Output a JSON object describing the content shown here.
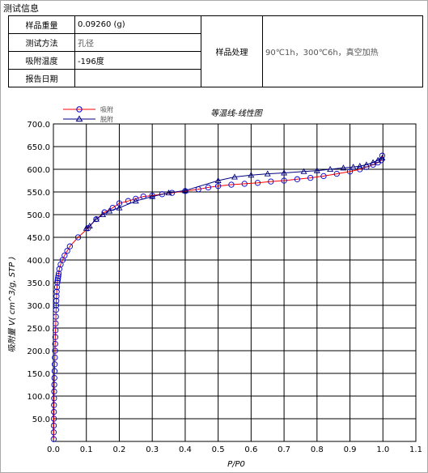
{
  "section_title": "测试信息",
  "info": {
    "sample_weight_label": "样品重量",
    "sample_weight_value": "0.09260 (g)",
    "test_method_label": "测试方法",
    "test_method_value": "孔径",
    "adsorption_temp_label": "吸附温度",
    "adsorption_temp_value": "-196度",
    "report_date_label": "报告日期",
    "report_date_value": "",
    "sample_treatment_label": "样品处理",
    "sample_treatment_value": "90℃1h，300℃6h，真空加热"
  },
  "colors": {
    "adsorption": "#ff0000",
    "desorption": "#000080",
    "marker": "#0000cc",
    "grid": "#000000"
  },
  "chart_data": {
    "type": "line",
    "title": "等温线-线性图",
    "xlabel": "P/P0",
    "ylabel": "吸附量 V( cm^3/g, STP )",
    "xlim": [
      0.0,
      1.1
    ],
    "ylim": [
      0.0,
      700.0
    ],
    "xticks": [
      "0.0",
      "0.1",
      "0.2",
      "0.3",
      "0.4",
      "0.5",
      "0.6",
      "0.7",
      "0.8",
      "0.9",
      "1.0",
      "1.1"
    ],
    "yticks": [
      "50.0",
      "100.0",
      "150.0",
      "200.0",
      "250.0",
      "300.0",
      "350.0",
      "400.0",
      "450.0",
      "500.0",
      "550.0",
      "600.0",
      "650.0",
      "700.0"
    ],
    "grid": true,
    "legend_position": "top-left",
    "series": [
      {
        "name": "吸附",
        "marker": "circle",
        "x": [
          0.0008,
          0.001,
          0.0012,
          0.0014,
          0.0016,
          0.0018,
          0.002,
          0.0023,
          0.0026,
          0.003,
          0.0035,
          0.004,
          0.0045,
          0.005,
          0.0055,
          0.006,
          0.0065,
          0.007,
          0.0075,
          0.008,
          0.0085,
          0.009,
          0.0095,
          0.01,
          0.011,
          0.012,
          0.013,
          0.014,
          0.015,
          0.016,
          0.018,
          0.022,
          0.028,
          0.034,
          0.042,
          0.05,
          0.075,
          0.105,
          0.13,
          0.155,
          0.18,
          0.2,
          0.227,
          0.25,
          0.273,
          0.3,
          0.33,
          0.36,
          0.4,
          0.44,
          0.47,
          0.5,
          0.54,
          0.58,
          0.62,
          0.66,
          0.7,
          0.74,
          0.78,
          0.82,
          0.86,
          0.9,
          0.93,
          0.95,
          0.97,
          0.985,
          0.995,
          0.998
        ],
        "y": [
          5,
          20,
          35,
          50,
          65,
          80,
          95,
          110,
          125,
          140,
          155,
          170,
          185,
          200,
          215,
          230,
          245,
          260,
          275,
          290,
          300,
          310,
          320,
          330,
          340,
          350,
          355,
          360,
          365,
          370,
          380,
          390,
          400,
          410,
          420,
          430,
          450,
          470,
          490,
          505,
          515,
          525,
          530,
          535,
          540,
          542,
          545,
          548,
          552,
          556,
          560,
          563,
          566,
          568,
          570,
          573,
          575,
          578,
          581,
          585,
          590,
          595,
          600,
          605,
          610,
          615,
          620,
          630
        ]
      },
      {
        "name": "脱附",
        "marker": "triangle",
        "x": [
          0.998,
          0.985,
          0.97,
          0.95,
          0.93,
          0.91,
          0.88,
          0.84,
          0.8,
          0.76,
          0.7,
          0.65,
          0.6,
          0.55,
          0.5,
          0.4,
          0.35,
          0.3,
          0.25,
          0.2,
          0.17,
          0.15,
          0.13,
          0.11,
          0.1
        ],
        "y": [
          625,
          620,
          615,
          610,
          607,
          605,
          603,
          600,
          597,
          595,
          592,
          590,
          587,
          583,
          575,
          553,
          548,
          540,
          530,
          515,
          508,
          500,
          490,
          475,
          470
        ]
      }
    ]
  }
}
